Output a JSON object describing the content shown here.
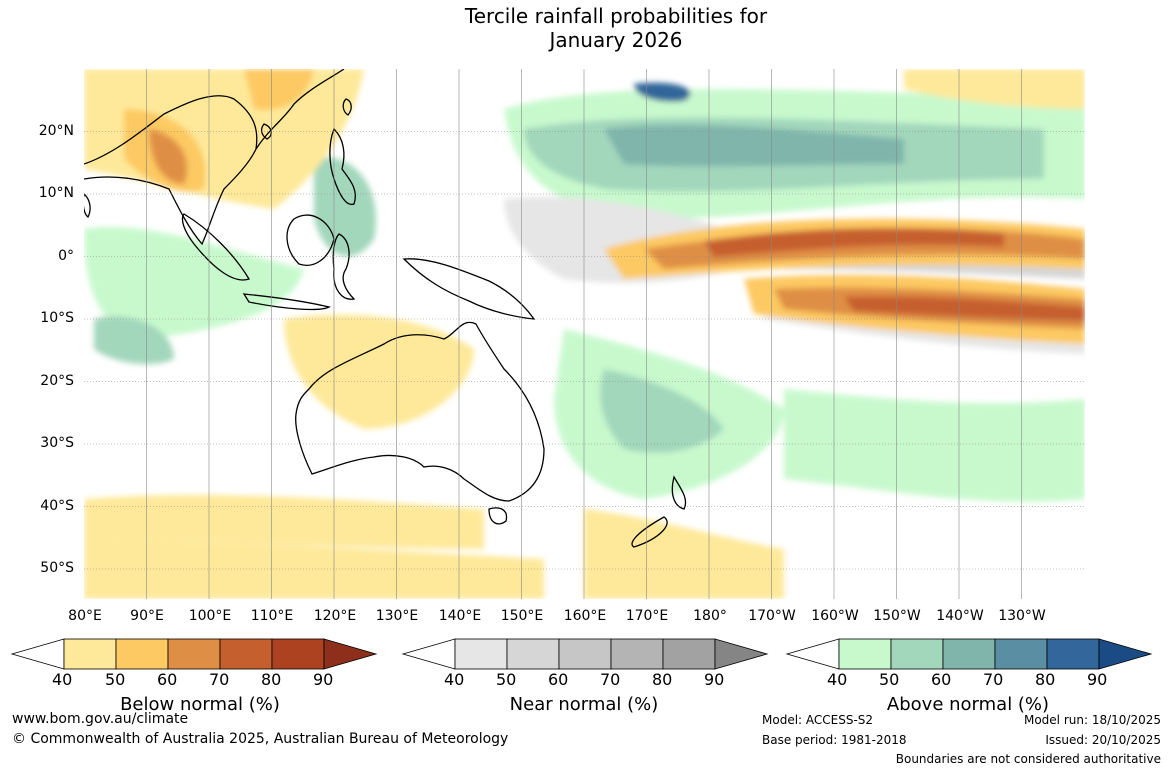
{
  "title": {
    "line1": "Tercile rainfall probabilities for",
    "line2": "January 2026"
  },
  "axes": {
    "lat_labels": [
      "20°N",
      "10°N",
      "0°",
      "10°S",
      "20°S",
      "30°S",
      "40°S",
      "50°S"
    ],
    "lon_labels": [
      "80°E",
      "90°E",
      "100°E",
      "110°E",
      "120°E",
      "130°E",
      "140°E",
      "150°E",
      "160°E",
      "170°E",
      "180°",
      "170°W",
      "160°W",
      "150°W",
      "140°W",
      "130°W"
    ],
    "lat_range": [
      -55,
      30
    ],
    "lon_range": [
      80,
      240
    ]
  },
  "legends": [
    {
      "title": "Below normal (%)",
      "ticks": [
        "40",
        "50",
        "60",
        "70",
        "80",
        "90"
      ],
      "colors": [
        "#fee99a",
        "#fdc962",
        "#df8f45",
        "#c65f2e",
        "#ad4220",
        "#8e2f1c"
      ]
    },
    {
      "title": "Near normal (%)",
      "ticks": [
        "40",
        "50",
        "60",
        "70",
        "80",
        "90"
      ],
      "colors": [
        "#e6e6e6",
        "#d6d6d6",
        "#c6c6c6",
        "#b4b4b4",
        "#a2a2a2",
        "#858585"
      ]
    },
    {
      "title": "Above normal (%)",
      "ticks": [
        "40",
        "50",
        "60",
        "70",
        "80",
        "90"
      ],
      "colors": [
        "#c8f9cd",
        "#a3d7bc",
        "#7fb5ab",
        "#5a8ea2",
        "#33669a",
        "#1a4b85"
      ]
    }
  ],
  "footer": {
    "url": "www.bom.gov.au/climate",
    "copyright": "© Commonwealth of Australia 2025, Australian Bureau of Meteorology",
    "model": "Model: ACCESS-S2",
    "base_period": "Base period: 1981-2018",
    "model_run": "Model run: 18/10/2025",
    "issued": "Issued: 20/10/2025",
    "disclaimer": "Boundaries are not considered authoritative"
  }
}
